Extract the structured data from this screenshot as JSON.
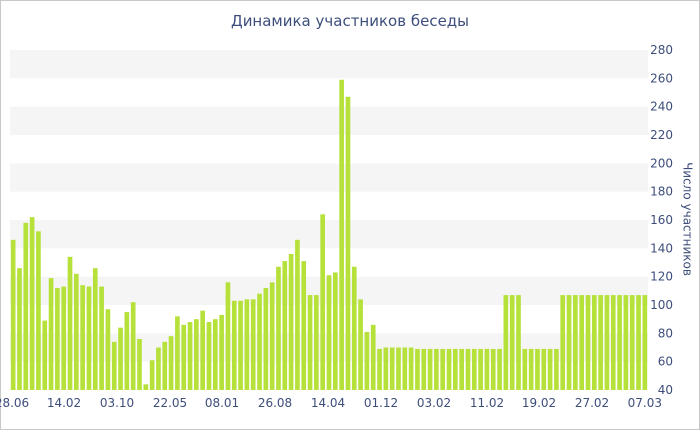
{
  "chart_data": {
    "type": "bar",
    "title": "Динамика участников беседы",
    "ylabel": "Число участников",
    "xlabel": "",
    "ylim": [
      40,
      280
    ],
    "yticks": [
      40,
      60,
      80,
      100,
      120,
      140,
      160,
      180,
      200,
      220,
      240,
      260,
      280
    ],
    "x_tick_labels": [
      "28.06",
      "14.02",
      "03.10",
      "22.05",
      "08.01",
      "26.08",
      "14.04",
      "01.12",
      "03.02",
      "11.02",
      "19.02",
      "27.02",
      "07.03"
    ],
    "grid": "horizontal bands",
    "bar_color": "#b6e13b",
    "values": [
      146,
      126,
      158,
      162,
      152,
      89,
      119,
      112,
      113,
      134,
      122,
      114,
      113,
      126,
      113,
      97,
      74,
      84,
      95,
      102,
      76,
      44,
      61,
      70,
      74,
      78,
      92,
      86,
      88,
      90,
      96,
      88,
      90,
      93,
      116,
      103,
      103,
      104,
      104,
      108,
      112,
      116,
      127,
      131,
      136,
      146,
      131,
      107,
      107,
      164,
      121,
      123,
      259,
      247,
      127,
      104,
      81,
      86,
      69,
      70,
      70,
      70,
      70,
      70,
      69,
      69,
      69,
      69,
      69,
      69,
      69,
      69,
      69,
      69,
      69,
      69,
      69,
      69,
      107,
      107,
      107,
      69,
      69,
      69,
      69,
      69,
      69,
      107,
      107,
      107,
      107,
      107,
      107,
      107,
      107,
      107,
      107,
      107,
      107,
      107,
      107
    ]
  }
}
